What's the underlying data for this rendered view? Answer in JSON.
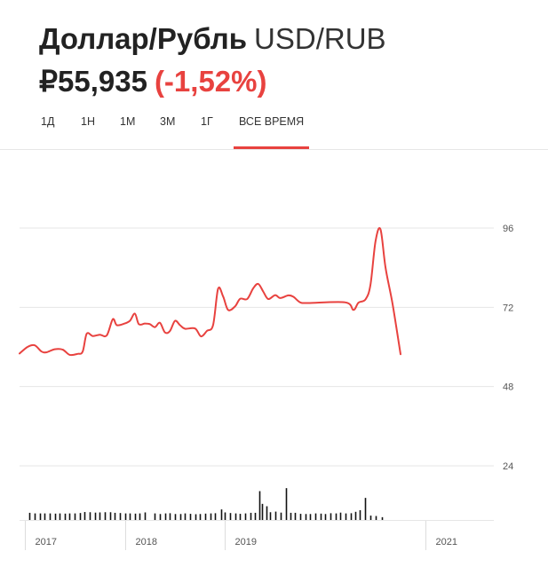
{
  "header": {
    "pair_name": "Доллар/Рубль",
    "ticker": "USD/RUB",
    "price": "₽55,935",
    "change": "(-1,52%)"
  },
  "colors": {
    "accent": "#e8423f",
    "text": "#222222",
    "grid": "#e6e6e6",
    "volume": "#111111"
  },
  "tabs": [
    {
      "label": "1Д",
      "active": false
    },
    {
      "label": "1Н",
      "active": false
    },
    {
      "label": "1М",
      "active": false
    },
    {
      "label": "3М",
      "active": false
    },
    {
      "label": "1Г",
      "active": false
    },
    {
      "label": "ВСЕ ВРЕМЯ",
      "active": true
    }
  ],
  "chart_data": {
    "type": "line",
    "y_ticks": [
      "96",
      "72",
      "48",
      "24"
    ],
    "ylim": [
      8,
      112
    ],
    "x_ticks": [
      {
        "label": "2017",
        "x": 2017.0
      },
      {
        "label": "2018",
        "x": 2018.0
      },
      {
        "label": "2019",
        "x": 2019.0
      },
      {
        "label": "2021",
        "x": 2021.0
      }
    ],
    "xlim": [
      2016.95,
      2021.68
    ],
    "grid": true,
    "series": [
      {
        "values": [
          [
            2016.95,
            58.0
          ],
          [
            2017.03,
            60.0
          ],
          [
            2017.1,
            60.5
          ],
          [
            2017.17,
            58.6
          ],
          [
            2017.22,
            58.4
          ],
          [
            2017.3,
            59.3
          ],
          [
            2017.38,
            59.2
          ],
          [
            2017.45,
            57.6
          ],
          [
            2017.53,
            57.9
          ],
          [
            2017.58,
            58.6
          ],
          [
            2017.62,
            64.0
          ],
          [
            2017.68,
            63.3
          ],
          [
            2017.75,
            63.7
          ],
          [
            2017.82,
            63.5
          ],
          [
            2017.88,
            68.4
          ],
          [
            2017.92,
            66.6
          ],
          [
            2017.99,
            67.0
          ],
          [
            2018.05,
            67.9
          ],
          [
            2018.1,
            70.1
          ],
          [
            2018.14,
            66.9
          ],
          [
            2018.2,
            67.1
          ],
          [
            2018.25,
            66.9
          ],
          [
            2018.3,
            66.0
          ],
          [
            2018.35,
            67.3
          ],
          [
            2018.4,
            64.4
          ],
          [
            2018.45,
            64.8
          ],
          [
            2018.5,
            67.9
          ],
          [
            2018.55,
            66.6
          ],
          [
            2018.6,
            65.5
          ],
          [
            2018.7,
            65.6
          ],
          [
            2018.76,
            63.2
          ],
          [
            2018.82,
            64.9
          ],
          [
            2018.88,
            66.6
          ],
          [
            2018.93,
            77.6
          ],
          [
            2018.98,
            75.3
          ],
          [
            2019.03,
            71.2
          ],
          [
            2019.1,
            72.3
          ],
          [
            2019.15,
            74.6
          ],
          [
            2019.22,
            74.5
          ],
          [
            2019.28,
            77.7
          ],
          [
            2019.33,
            79.1
          ],
          [
            2019.38,
            76.8
          ],
          [
            2019.43,
            74.5
          ],
          [
            2019.5,
            75.7
          ],
          [
            2019.55,
            74.8
          ],
          [
            2019.63,
            75.6
          ],
          [
            2019.68,
            75.2
          ],
          [
            2019.75,
            73.5
          ],
          [
            2019.83,
            73.3
          ],
          [
            2020.2,
            73.5
          ],
          [
            2020.28,
            71.2
          ],
          [
            2020.33,
            73.4
          ],
          [
            2020.4,
            74.4
          ],
          [
            2020.45,
            78.8
          ],
          [
            2020.5,
            92.0
          ],
          [
            2020.55,
            95.6
          ],
          [
            2020.6,
            84.0
          ],
          [
            2020.67,
            73.0
          ],
          [
            2020.75,
            57.8
          ]
        ]
      }
    ],
    "volume": {
      "ylim": [
        0,
        29
      ],
      "values": [
        [
          2017.05,
          3.6
        ],
        [
          2017.1,
          3.3
        ],
        [
          2017.15,
          3.3
        ],
        [
          2017.2,
          3.3
        ],
        [
          2017.25,
          3.3
        ],
        [
          2017.3,
          3.2
        ],
        [
          2017.35,
          3.3
        ],
        [
          2017.4,
          3.2
        ],
        [
          2017.45,
          3.3
        ],
        [
          2017.5,
          3.3
        ],
        [
          2017.55,
          3.5
        ],
        [
          2017.6,
          4.0
        ],
        [
          2017.65,
          3.9
        ],
        [
          2017.7,
          3.7
        ],
        [
          2017.75,
          3.8
        ],
        [
          2017.8,
          3.9
        ],
        [
          2017.85,
          3.9
        ],
        [
          2017.9,
          3.6
        ],
        [
          2017.95,
          3.5
        ],
        [
          2018.0,
          3.3
        ],
        [
          2018.05,
          3.3
        ],
        [
          2018.1,
          3.2
        ],
        [
          2018.15,
          3.3
        ],
        [
          2018.2,
          3.8
        ],
        [
          2018.3,
          3.3
        ],
        [
          2018.35,
          3.0
        ],
        [
          2018.4,
          3.3
        ],
        [
          2018.45,
          3.4
        ],
        [
          2018.5,
          3.0
        ],
        [
          2018.55,
          3.0
        ],
        [
          2018.6,
          3.3
        ],
        [
          2018.65,
          3.1
        ],
        [
          2018.7,
          2.9
        ],
        [
          2018.75,
          3.0
        ],
        [
          2018.8,
          3.2
        ],
        [
          2018.85,
          3.3
        ],
        [
          2018.9,
          3.4
        ],
        [
          2018.96,
          5.3
        ],
        [
          2019.0,
          3.8
        ],
        [
          2019.05,
          3.5
        ],
        [
          2019.1,
          3.3
        ],
        [
          2019.15,
          3.1
        ],
        [
          2019.2,
          3.3
        ],
        [
          2019.25,
          3.6
        ],
        [
          2019.3,
          3.6
        ],
        [
          2019.34,
          14.5
        ],
        [
          2019.37,
          8.1
        ],
        [
          2019.41,
          6.9
        ],
        [
          2019.45,
          3.9
        ],
        [
          2019.5,
          4.2
        ],
        [
          2019.55,
          3.7
        ],
        [
          2019.61,
          16.0
        ],
        [
          2019.65,
          3.6
        ],
        [
          2019.7,
          3.6
        ],
        [
          2019.75,
          3.1
        ],
        [
          2019.8,
          3.0
        ],
        [
          2019.85,
          3.0
        ],
        [
          2019.9,
          3.3
        ],
        [
          2019.95,
          3.2
        ],
        [
          2020.0,
          3.0
        ],
        [
          2020.05,
          3.4
        ],
        [
          2020.1,
          3.3
        ],
        [
          2020.15,
          3.7
        ],
        [
          2020.2,
          3.3
        ],
        [
          2020.25,
          3.4
        ],
        [
          2020.3,
          4.1
        ],
        [
          2020.34,
          4.9
        ],
        [
          2020.4,
          11.1
        ],
        [
          2020.45,
          2.2
        ],
        [
          2020.5,
          2.0
        ],
        [
          2020.56,
          1.4
        ]
      ]
    }
  }
}
